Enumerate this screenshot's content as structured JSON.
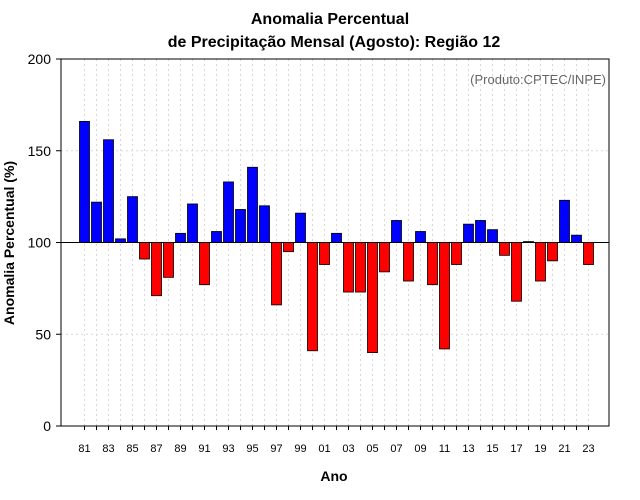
{
  "chart_data": {
    "type": "bar",
    "title_line1": "Anomalia Percentual",
    "title_line2": "de Precipitação Mensal (Agosto): Região 12",
    "xlabel": "Ano",
    "ylabel": "Anomalia Percentual (%)",
    "annotation": "(Produto:CPTEC/INPE)",
    "ylim": [
      0,
      200
    ],
    "yticks": [
      0,
      50,
      100,
      150,
      200
    ],
    "baseline": 100,
    "grid": true,
    "colors": {
      "above": "#0000ff",
      "below": "#ff0000",
      "edge": "#000000"
    },
    "categories": [
      "81",
      "82",
      "83",
      "84",
      "85",
      "86",
      "87",
      "88",
      "89",
      "90",
      "91",
      "92",
      "93",
      "94",
      "95",
      "96",
      "97",
      "98",
      "99",
      "00",
      "01",
      "02",
      "03",
      "04",
      "05",
      "06",
      "07",
      "08",
      "09",
      "10",
      "11",
      "12",
      "13",
      "14",
      "15",
      "16",
      "17",
      "18",
      "19",
      "20",
      "21",
      "22",
      "23"
    ],
    "tick_labels": [
      "81",
      "83",
      "85",
      "87",
      "89",
      "91",
      "93",
      "95",
      "97",
      "99",
      "01",
      "03",
      "05",
      "07",
      "09",
      "11",
      "13",
      "15",
      "17",
      "19",
      "21",
      "23"
    ],
    "values": [
      166,
      122,
      156,
      102,
      125,
      91,
      71,
      81,
      105,
      121,
      77,
      106,
      133,
      118,
      141,
      120,
      66,
      95,
      116,
      41,
      88,
      105,
      73,
      73,
      40,
      84,
      112,
      79,
      106,
      77,
      42,
      88,
      110,
      112,
      107,
      93,
      68,
      100.5,
      79,
      90,
      123,
      104,
      88
    ]
  }
}
